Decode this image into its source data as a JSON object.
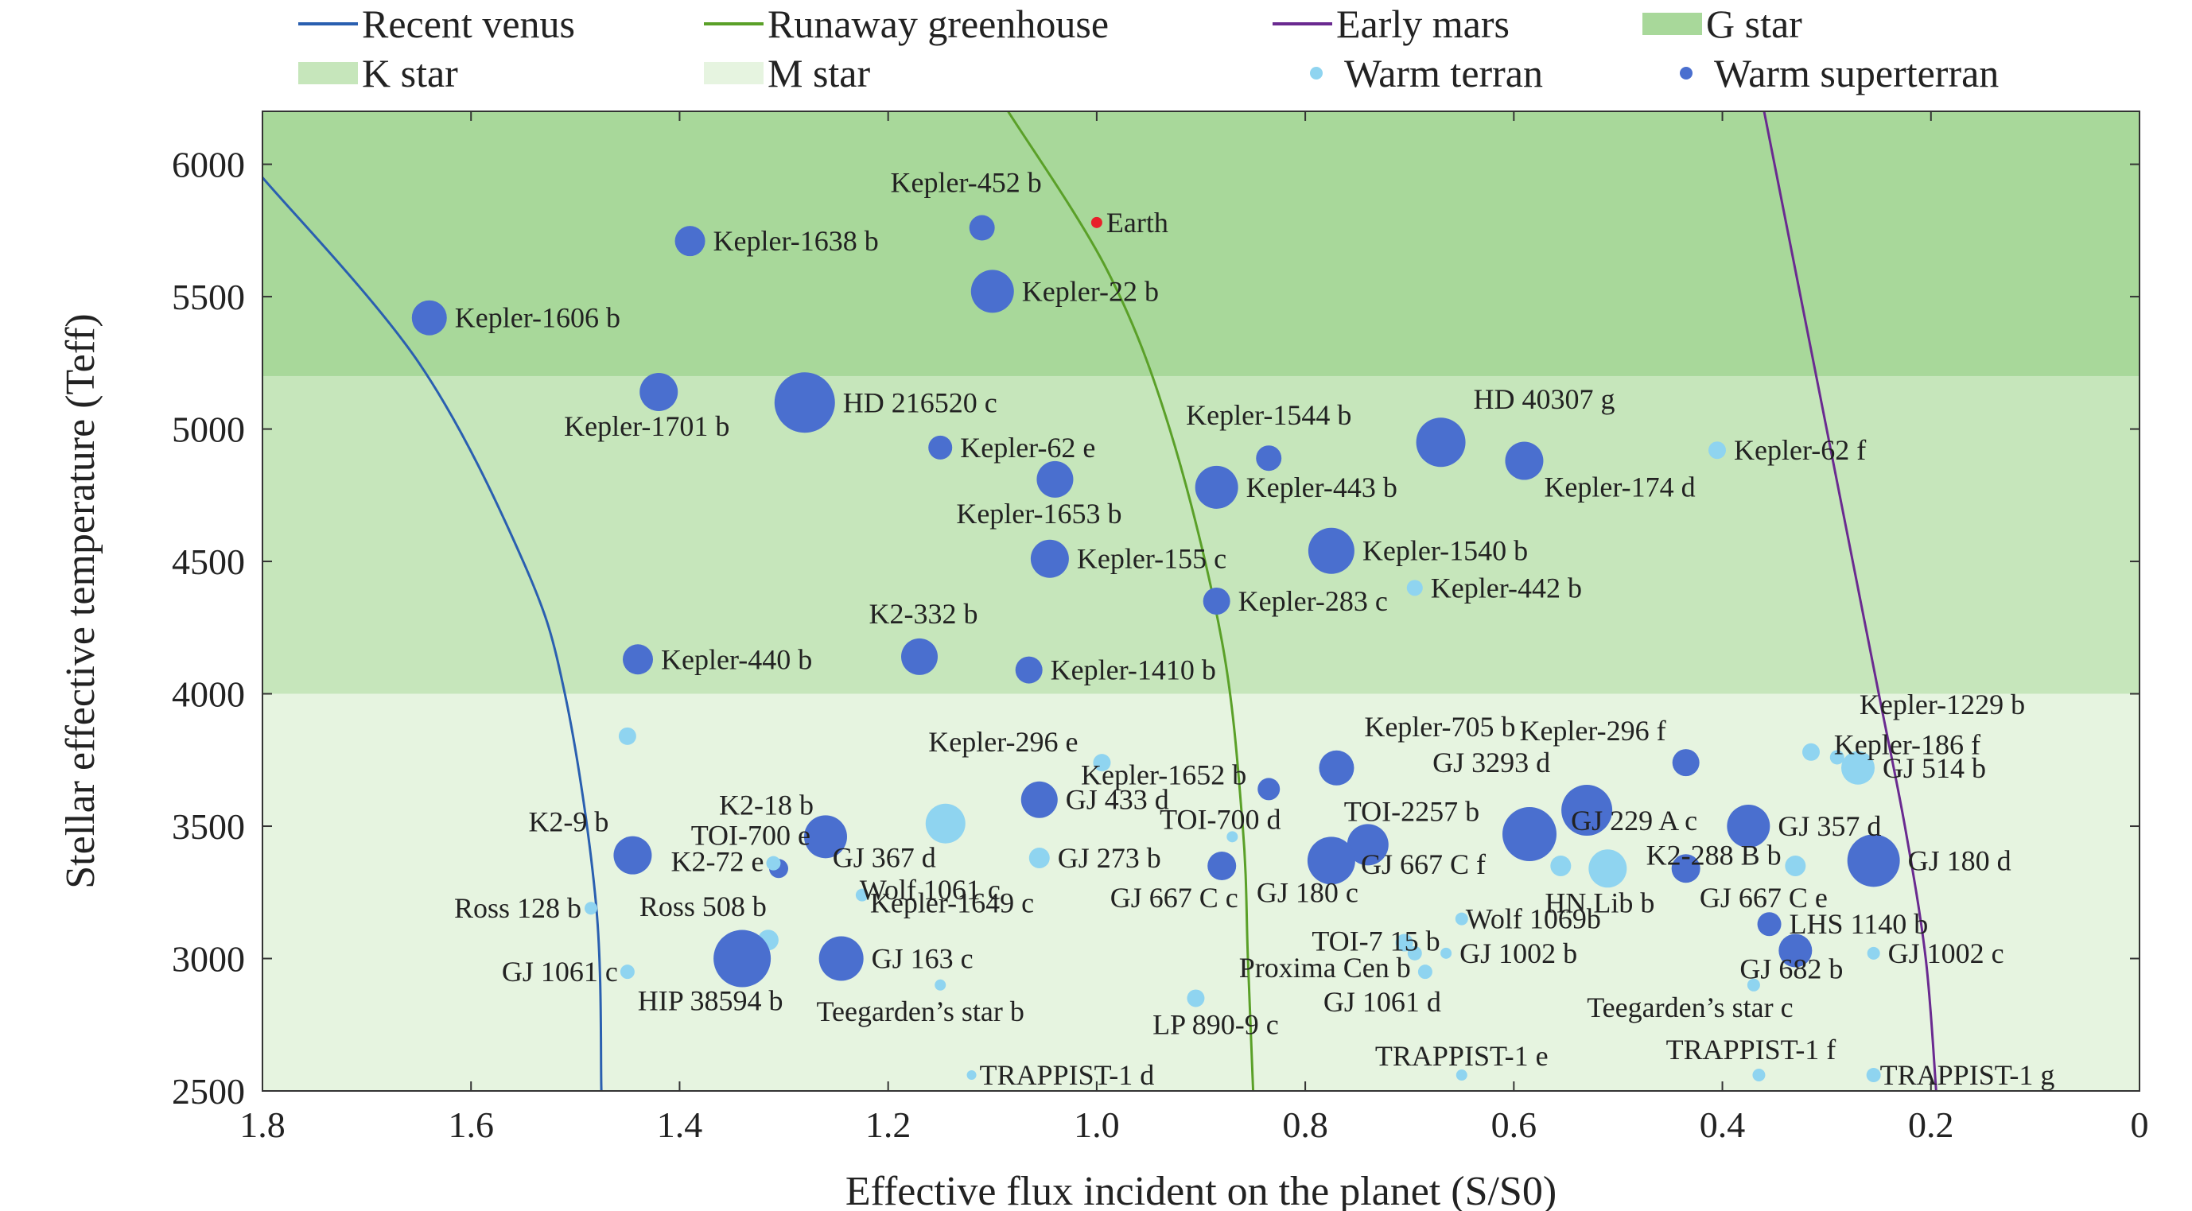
{
  "chart_data": {
    "type": "scatter",
    "xlabel": "Effective flux incident on the planet (S/S0)",
    "ylabel": "Stellar effective temperature (Teff)",
    "xlim": [
      1.8,
      0
    ],
    "x_reversed": true,
    "ylim": [
      2500,
      6200
    ],
    "xticks": [
      "1.8",
      "1.6",
      "1.4",
      "1.2",
      "1.0",
      "0.8",
      "0.6",
      "0.4",
      "0.2",
      "0"
    ],
    "yticks": [
      "2500",
      "3000",
      "3500",
      "4000",
      "4500",
      "5000",
      "5500",
      "6000"
    ],
    "grid": false,
    "legend_position": "top",
    "legend": [
      {
        "label": "Recent venus",
        "kind": "line",
        "color": "#2a5fb0"
      },
      {
        "label": "Runaway greenhouse",
        "kind": "line",
        "color": "#5aa028"
      },
      {
        "label": "Early mars",
        "kind": "line",
        "color": "#6a2a90"
      },
      {
        "label": "G star",
        "kind": "patch",
        "color": "#a8d89a"
      },
      {
        "label": "K star",
        "kind": "patch",
        "color": "#c6e6bb"
      },
      {
        "label": "M star",
        "kind": "patch",
        "color": "#e6f4e0"
      },
      {
        "label": "Warm terran",
        "kind": "dot",
        "color": "#8fd4f0"
      },
      {
        "label": "Warm superterran",
        "kind": "dot",
        "color": "#4a6fcf"
      }
    ],
    "bands": [
      {
        "name": "G star",
        "ymin": 5200,
        "ymax": 6200,
        "color": "#a8d89a"
      },
      {
        "name": "K star",
        "ymin": 4000,
        "ymax": 5200,
        "color": "#c6e6bb"
      },
      {
        "name": "M star",
        "ymin": 2500,
        "ymax": 4000,
        "color": "#e6f4e0"
      }
    ],
    "boundaries": [
      {
        "name": "Recent venus",
        "color": "#2a5fb0",
        "points": [
          [
            1.8,
            5950
          ],
          [
            1.65,
            5250
          ],
          [
            1.55,
            4500
          ],
          [
            1.51,
            4000
          ],
          [
            1.48,
            3200
          ],
          [
            1.475,
            2500
          ]
        ]
      },
      {
        "name": "Runaway greenhouse",
        "color": "#5aa028",
        "points": [
          [
            1.085,
            6200
          ],
          [
            0.99,
            5600
          ],
          [
            0.93,
            5000
          ],
          [
            0.88,
            4200
          ],
          [
            0.86,
            3500
          ],
          [
            0.855,
            3000
          ],
          [
            0.85,
            2500
          ]
        ]
      },
      {
        "name": "Early mars",
        "color": "#6a2a90",
        "points": [
          [
            0.36,
            6200
          ],
          [
            0.32,
            5400
          ],
          [
            0.28,
            4600
          ],
          [
            0.25,
            4000
          ],
          [
            0.225,
            3500
          ],
          [
            0.205,
            3000
          ],
          [
            0.195,
            2500
          ]
        ]
      }
    ],
    "points": [
      {
        "label": "Kepler-1606 b",
        "x": 1.64,
        "y": 5420,
        "type": "superterran",
        "size": 22
      },
      {
        "label": "Kepler-1638 b",
        "x": 1.39,
        "y": 5710,
        "type": "superterran",
        "size": 19
      },
      {
        "label": "Kepler-452 b",
        "x": 1.11,
        "y": 5760,
        "type": "superterran",
        "size": 16
      },
      {
        "label": "Earth",
        "x": 1.0,
        "y": 5780,
        "type": "earth",
        "size": 7
      },
      {
        "label": "Kepler-22 b",
        "x": 1.1,
        "y": 5520,
        "type": "superterran",
        "size": 27
      },
      {
        "label": "Kepler-1701 b",
        "x": 1.42,
        "y": 5140,
        "type": "superterran",
        "size": 24
      },
      {
        "label": "HD 216520 c",
        "x": 1.28,
        "y": 5100,
        "type": "superterran",
        "size": 38
      },
      {
        "label": "Kepler-62 e",
        "x": 1.15,
        "y": 4930,
        "type": "superterran",
        "size": 15
      },
      {
        "label": "Kepler-1653 b",
        "x": 1.04,
        "y": 4810,
        "type": "superterran",
        "size": 23
      },
      {
        "label": "Kepler-1544 b",
        "x": 0.835,
        "y": 4890,
        "type": "superterran",
        "size": 16
      },
      {
        "label": "Kepler-443 b",
        "x": 0.885,
        "y": 4780,
        "type": "superterran",
        "size": 27
      },
      {
        "label": "HD 40307 g",
        "x": 0.67,
        "y": 4950,
        "type": "superterran",
        "size": 31
      },
      {
        "label": "Kepler-174 d",
        "x": 0.59,
        "y": 4880,
        "type": "superterran",
        "size": 24
      },
      {
        "label": "Kepler-62 f",
        "x": 0.405,
        "y": 4920,
        "type": "terran",
        "size": 11
      },
      {
        "label": "Kepler-155 c",
        "x": 1.045,
        "y": 4510,
        "type": "superterran",
        "size": 24
      },
      {
        "label": "Kepler-1540 b",
        "x": 0.775,
        "y": 4540,
        "type": "superterran",
        "size": 29
      },
      {
        "label": "Kepler-442 b",
        "x": 0.695,
        "y": 4400,
        "type": "terran",
        "size": 10
      },
      {
        "label": "Kepler-283 c",
        "x": 0.885,
        "y": 4350,
        "type": "superterran",
        "size": 17
      },
      {
        "label": "Kepler-440 b",
        "x": 1.44,
        "y": 4130,
        "type": "superterran",
        "size": 19
      },
      {
        "label": "K2-332 b",
        "x": 1.17,
        "y": 4140,
        "type": "superterran",
        "size": 23
      },
      {
        "label": "Kepler-1410 b",
        "x": 1.065,
        "y": 4090,
        "type": "superterran",
        "size": 17
      },
      {
        "label": "",
        "x": 1.45,
        "y": 3840,
        "type": "terran",
        "size": 11
      },
      {
        "label": "Kepler-1229 b",
        "x": 0.315,
        "y": 3780,
        "type": "terran",
        "size": 11
      },
      {
        "label": "Kepler-186 f",
        "x": 0.29,
        "y": 3760,
        "type": "terran",
        "size": 9
      },
      {
        "label": "GJ 514 b",
        "x": 0.27,
        "y": 3720,
        "type": "terran",
        "size": 21
      },
      {
        "label": "Kepler-296 e",
        "x": 0.995,
        "y": 3740,
        "type": "terran",
        "size": 11
      },
      {
        "label": "Kepler-705 b",
        "x": 0.77,
        "y": 3720,
        "type": "superterran",
        "size": 22
      },
      {
        "label": "Kepler-296 f",
        "x": 0.435,
        "y": 3740,
        "type": "superterran",
        "size": 17
      },
      {
        "label": "Kepler-1652 b",
        "x": 0.835,
        "y": 3640,
        "type": "superterran",
        "size": 14
      },
      {
        "label": "GJ 433 d",
        "x": 1.055,
        "y": 3600,
        "type": "superterran",
        "size": 23
      },
      {
        "label": "GJ 3293 d",
        "x": 0.53,
        "y": 3560,
        "type": "superterran",
        "size": 32
      },
      {
        "label": "GJ 229 A c",
        "x": 0.53,
        "y": 3560,
        "type": "superterran",
        "size": 0
      },
      {
        "label": "GJ 357 d",
        "x": 0.375,
        "y": 3500,
        "type": "superterran",
        "size": 27
      },
      {
        "label": "GJ 367 d",
        "x": 1.145,
        "y": 3510,
        "type": "terran",
        "size": 25
      },
      {
        "label": "K2-18 b",
        "x": 1.26,
        "y": 3460,
        "type": "superterran",
        "size": 27
      },
      {
        "label": "TOI-700 d",
        "x": 0.87,
        "y": 3460,
        "type": "terran",
        "size": 7
      },
      {
        "label": "TOI-2257 b",
        "x": 0.74,
        "y": 3430,
        "type": "superterran",
        "size": 26
      },
      {
        "label": "GJ 667 C f",
        "x": 0.585,
        "y": 3470,
        "type": "superterran",
        "size": 34
      },
      {
        "label": "K2-9 b",
        "x": 1.445,
        "y": 3390,
        "type": "superterran",
        "size": 24
      },
      {
        "label": "TOI-700 e",
        "x": 1.305,
        "y": 3340,
        "type": "superterran",
        "size": 12
      },
      {
        "label": "K2-72 e",
        "x": 1.31,
        "y": 3360,
        "type": "terran",
        "size": 9
      },
      {
        "label": "Wolf 1061 c",
        "x": 1.235,
        "y": 3380,
        "type": "superterran",
        "size": 0
      },
      {
        "label": "GJ 273 b",
        "x": 1.055,
        "y": 3380,
        "type": "terran",
        "size": 13
      },
      {
        "label": "GJ 667 C c",
        "x": 0.88,
        "y": 3350,
        "type": "superterran",
        "size": 18
      },
      {
        "label": "GJ 180 c",
        "x": 0.775,
        "y": 3370,
        "type": "superterran",
        "size": 30
      },
      {
        "label": "",
        "x": 0.555,
        "y": 3350,
        "type": "terran",
        "size": 13
      },
      {
        "label": "HN Lib b",
        "x": 0.51,
        "y": 3340,
        "type": "terran",
        "size": 24
      },
      {
        "label": "K2-288 B b",
        "x": 0.435,
        "y": 3340,
        "type": "superterran",
        "size": 18
      },
      {
        "label": "GJ 667 C e",
        "x": 0.33,
        "y": 3350,
        "type": "terran",
        "size": 13
      },
      {
        "label": "GJ 180 d",
        "x": 0.255,
        "y": 3370,
        "type": "superterran",
        "size": 33
      },
      {
        "label": "Ross 128 b",
        "x": 1.485,
        "y": 3190,
        "type": "terran",
        "size": 8
      },
      {
        "label": "Kepler-1649 c",
        "x": 1.225,
        "y": 3240,
        "type": "terran",
        "size": 8
      },
      {
        "label": "TOI-7 15 b",
        "x": 0.705,
        "y": 3060,
        "type": "terran",
        "size": 11
      },
      {
        "label": "Wolf 1069b",
        "x": 0.65,
        "y": 3150,
        "type": "terran",
        "size": 8
      },
      {
        "label": "LHS 1140 b",
        "x": 0.355,
        "y": 3130,
        "type": "superterran",
        "size": 15
      },
      {
        "label": "Ross 508 b",
        "x": 1.315,
        "y": 3070,
        "type": "terran",
        "size": 13
      },
      {
        "label": "GJ 1061 c",
        "x": 1.45,
        "y": 2950,
        "type": "terran",
        "size": 9
      },
      {
        "label": "HIP 38594 b",
        "x": 1.34,
        "y": 3000,
        "type": "superterran",
        "size": 36
      },
      {
        "label": "GJ 163 c",
        "x": 1.245,
        "y": 3000,
        "type": "superterran",
        "size": 28
      },
      {
        "label": "Proxima Cen b",
        "x": 0.695,
        "y": 3020,
        "type": "terran",
        "size": 9
      },
      {
        "label": "GJ 1002 b",
        "x": 0.665,
        "y": 3020,
        "type": "terran",
        "size": 7
      },
      {
        "label": "GJ 1061 d",
        "x": 0.685,
        "y": 2950,
        "type": "terran",
        "size": 9
      },
      {
        "label": "GJ 682 b",
        "x": 0.33,
        "y": 3030,
        "type": "superterran",
        "size": 21
      },
      {
        "label": "GJ 1002 c",
        "x": 0.255,
        "y": 3020,
        "type": "terran",
        "size": 8
      },
      {
        "label": "Teegarden’s star b",
        "x": 1.15,
        "y": 2900,
        "type": "terran",
        "size": 7
      },
      {
        "label": "Teegarden’s star c",
        "x": 0.37,
        "y": 2900,
        "type": "terran",
        "size": 8
      },
      {
        "label": "LP 890-9 c",
        "x": 0.905,
        "y": 2850,
        "type": "terran",
        "size": 11
      },
      {
        "label": "TRAPPIST-1 d",
        "x": 1.12,
        "y": 2560,
        "type": "terran",
        "size": 6
      },
      {
        "label": "TRAPPIST-1 e",
        "x": 0.65,
        "y": 2560,
        "type": "terran",
        "size": 7
      },
      {
        "label": "TRAPPIST-1 f",
        "x": 0.365,
        "y": 2560,
        "type": "terran",
        "size": 8
      },
      {
        "label": "TRAPPIST-1 g",
        "x": 0.255,
        "y": 2560,
        "type": "terran",
        "size": 9
      }
    ],
    "colors": {
      "terran": "#8fd4f0",
      "superterran": "#4a6fcf",
      "earth": "#e8202a"
    }
  }
}
